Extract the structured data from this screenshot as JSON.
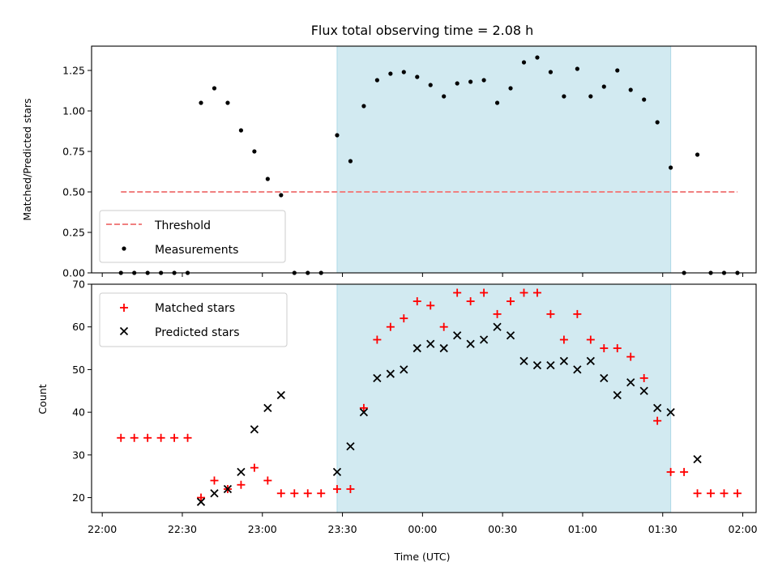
{
  "figure": {
    "title": "Flux total observing time = 2.08 h",
    "xlabel": "Time (UTC)",
    "x_tick_labels": [
      "22:00",
      "22:30",
      "23:00",
      "23:30",
      "00:00",
      "00:30",
      "01:00",
      "01:30",
      "02:00"
    ],
    "highlight_color": "#add8e6"
  },
  "chart_data": [
    {
      "type": "scatter",
      "panel": "top",
      "title": "Flux total observing time = 2.08 h",
      "xlabel": "",
      "ylabel": "Matched/Predicted stars",
      "x_unit": "minutes after 22:00 UTC",
      "xlim": [
        -4,
        245
      ],
      "ylim": [
        0,
        1.4
      ],
      "yticks": [
        0.0,
        0.25,
        0.5,
        0.75,
        1.0,
        1.25
      ],
      "ytick_labels": [
        "0.00",
        "0.25",
        "0.50",
        "0.75",
        "1.00",
        "1.25"
      ],
      "highlight_span": [
        88,
        213
      ],
      "legend": {
        "location": "lower left",
        "entries": [
          "Threshold",
          "Measurements"
        ]
      },
      "threshold": {
        "name": "Threshold",
        "y": 0.5,
        "x_range": [
          7,
          238
        ],
        "color": "#f08080",
        "style": "dashed"
      },
      "series": [
        {
          "name": "Measurements",
          "color": "#000000",
          "marker": "dot",
          "x": [
            7,
            12,
            17,
            22,
            27,
            32,
            37,
            42,
            47,
            52,
            57,
            62,
            67,
            72,
            77,
            82,
            88,
            93,
            98,
            103,
            108,
            113,
            118,
            123,
            128,
            133,
            138,
            143,
            148,
            153,
            158,
            163,
            168,
            173,
            178,
            183,
            188,
            193,
            198,
            203,
            208,
            213,
            218,
            223,
            228,
            233,
            238
          ],
          "y": [
            0,
            0,
            0,
            0,
            0,
            0,
            1.05,
            1.14,
            1.05,
            0.88,
            0.75,
            0.58,
            0.48,
            0,
            0,
            0,
            0.85,
            0.69,
            1.03,
            1.19,
            1.23,
            1.24,
            1.21,
            1.16,
            1.09,
            1.17,
            1.18,
            1.19,
            1.05,
            1.14,
            1.3,
            1.33,
            1.24,
            1.09,
            1.26,
            1.09,
            1.15,
            1.25,
            1.13,
            1.07,
            0.93,
            0.65,
            0,
            0.73,
            0,
            0,
            0
          ]
        }
      ]
    },
    {
      "type": "scatter",
      "panel": "bottom",
      "xlabel": "Time (UTC)",
      "ylabel": "Count",
      "x_unit": "minutes after 22:00 UTC",
      "xlim": [
        -4,
        245
      ],
      "ylim": [
        16.5,
        70
      ],
      "yticks": [
        20,
        30,
        40,
        50,
        60,
        70
      ],
      "ytick_labels": [
        "20",
        "30",
        "40",
        "50",
        "60",
        "70"
      ],
      "highlight_span": [
        88,
        213
      ],
      "legend": {
        "location": "upper left",
        "entries": [
          "Matched stars",
          "Predicted stars"
        ]
      },
      "series": [
        {
          "name": "Matched stars",
          "color": "#ff0000",
          "marker": "plus",
          "x": [
            7,
            12,
            17,
            22,
            27,
            32,
            37,
            42,
            47,
            52,
            57,
            62,
            67,
            72,
            77,
            82,
            88,
            93,
            98,
            103,
            108,
            113,
            118,
            123,
            128,
            133,
            138,
            143,
            148,
            153,
            158,
            163,
            168,
            173,
            178,
            183,
            188,
            193,
            198,
            203,
            208,
            213,
            218,
            223,
            228,
            233,
            238
          ],
          "y": [
            34,
            34,
            34,
            34,
            34,
            34,
            20,
            24,
            22,
            23,
            27,
            24,
            21,
            21,
            21,
            21,
            22,
            22,
            41,
            57,
            60,
            62,
            66,
            65,
            60,
            68,
            66,
            68,
            63,
            66,
            68,
            68,
            63,
            57,
            63,
            57,
            55,
            55,
            53,
            48,
            38,
            26,
            26,
            21,
            21,
            21,
            21
          ]
        },
        {
          "name": "Predicted stars",
          "color": "#000000",
          "marker": "cross",
          "x": [
            37,
            42,
            47,
            52,
            57,
            62,
            67,
            88,
            93,
            98,
            103,
            108,
            113,
            118,
            123,
            128,
            133,
            138,
            143,
            148,
            153,
            158,
            163,
            168,
            173,
            178,
            183,
            188,
            193,
            198,
            203,
            208,
            213,
            223
          ],
          "y": [
            19,
            21,
            22,
            26,
            36,
            41,
            44,
            26,
            32,
            40,
            48,
            49,
            50,
            55,
            56,
            55,
            58,
            56,
            57,
            60,
            58,
            52,
            51,
            51,
            52,
            50,
            52,
            48,
            44,
            47,
            45,
            41,
            40,
            29
          ]
        }
      ]
    }
  ]
}
